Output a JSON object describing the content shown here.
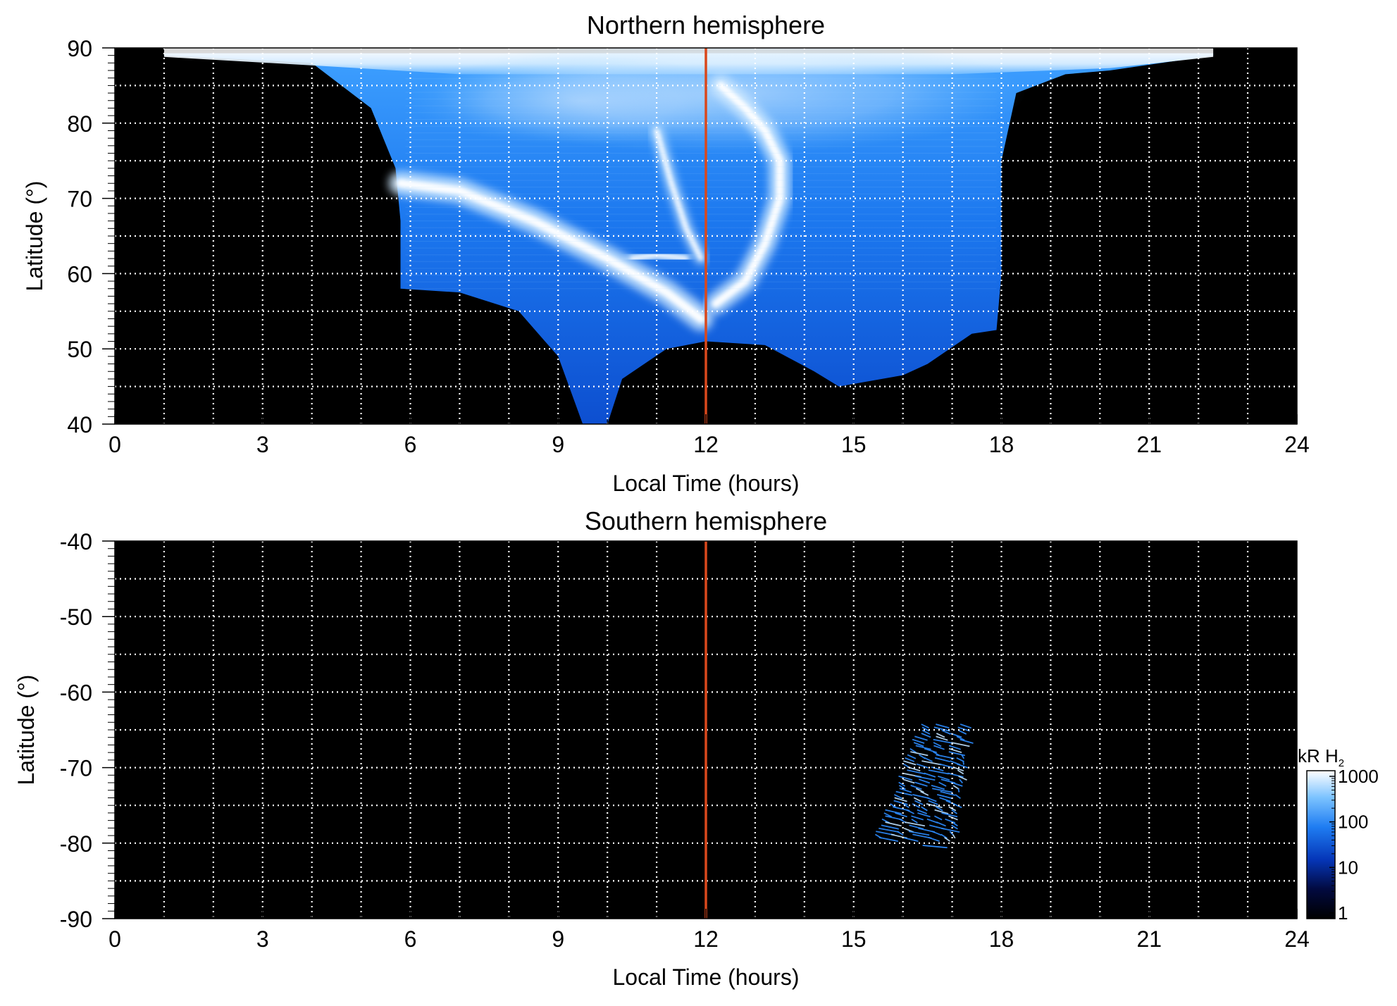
{
  "chart_data": [
    {
      "type": "heatmap",
      "title": "Northern hemisphere",
      "xlabel": "Local Time (hours)",
      "ylabel": "Latitude (°)",
      "xlim": [
        0,
        24
      ],
      "ylim": [
        40,
        90
      ],
      "x_ticks": [
        "0",
        "3",
        "6",
        "9",
        "12",
        "15",
        "18",
        "21",
        "24"
      ],
      "y_ticks": [
        "90",
        "80",
        "70",
        "60",
        "50",
        "40"
      ],
      "grid": true,
      "marker_line_local_time": 12,
      "marker_line_color": "#d9481c",
      "coverage_edge": [
        [
          4.0,
          88
        ],
        [
          5.2,
          82
        ],
        [
          5.7,
          74
        ],
        [
          5.8,
          67
        ],
        [
          5.8,
          58
        ],
        [
          7.0,
          57.5
        ],
        [
          8.2,
          55
        ],
        [
          9.0,
          49
        ],
        [
          9.5,
          40
        ],
        [
          10.0,
          40
        ],
        [
          10.3,
          46
        ],
        [
          11.2,
          50
        ],
        [
          12.0,
          51
        ],
        [
          13.2,
          50.5
        ],
        [
          14.2,
          47
        ],
        [
          14.7,
          45
        ],
        [
          16.0,
          46.5
        ],
        [
          16.5,
          48
        ],
        [
          17.4,
          52
        ],
        [
          17.9,
          52.5
        ],
        [
          18.0,
          60
        ],
        [
          18.0,
          75
        ],
        [
          18.3,
          84
        ],
        [
          19.3,
          86.5
        ],
        [
          20.2,
          87
        ],
        [
          22.3,
          89
        ],
        [
          22.3,
          89.3
        ],
        [
          1.0,
          89.3
        ],
        [
          1.0,
          89
        ],
        [
          4.0,
          88
        ]
      ],
      "bright_arcs": [
        {
          "local_time": [
            5.8,
            7.0,
            8.5,
            10.0,
            11.2,
            11.9
          ],
          "latitude": [
            72,
            71,
            67,
            62,
            57.5,
            54
          ]
        },
        {
          "local_time": [
            12.2,
            12.8,
            13.2,
            13.5,
            13.5,
            13.2,
            12.8,
            12.3
          ],
          "latitude": [
            56,
            59,
            64,
            70,
            75,
            79,
            82,
            85
          ]
        },
        {
          "local_time": [
            11.0,
            11.3,
            11.6,
            11.9
          ],
          "latitude": [
            79,
            72,
            66,
            62
          ]
        },
        {
          "local_time": [
            10.5,
            11.0,
            11.6
          ],
          "latitude": [
            62,
            62.5,
            62
          ]
        }
      ]
    },
    {
      "type": "heatmap",
      "title": "Southern hemisphere",
      "xlabel": "Local Time (hours)",
      "ylabel": "Latitude (°)",
      "xlim": [
        0,
        24
      ],
      "ylim": [
        -90,
        -40
      ],
      "x_ticks": [
        "0",
        "3",
        "6",
        "9",
        "12",
        "15",
        "18",
        "21",
        "24"
      ],
      "y_ticks": [
        "-40",
        "-50",
        "-60",
        "-70",
        "-80",
        "-90"
      ],
      "grid": true,
      "marker_line_local_time": 12,
      "marker_line_color": "#d9481c",
      "emission_patch": {
        "local_time": [
          15.4,
          17.5
        ],
        "latitude": [
          -80.5,
          -64
        ]
      },
      "colorbar": {
        "label": "kR H",
        "label_subscript": "2",
        "scale": "log",
        "ticks": [
          "1000",
          "100",
          "10",
          "1"
        ],
        "colors": [
          "#000000",
          "#020a40",
          "#0536b8",
          "#1f7df2",
          "#7cc3ff",
          "#ffffff"
        ]
      }
    }
  ]
}
